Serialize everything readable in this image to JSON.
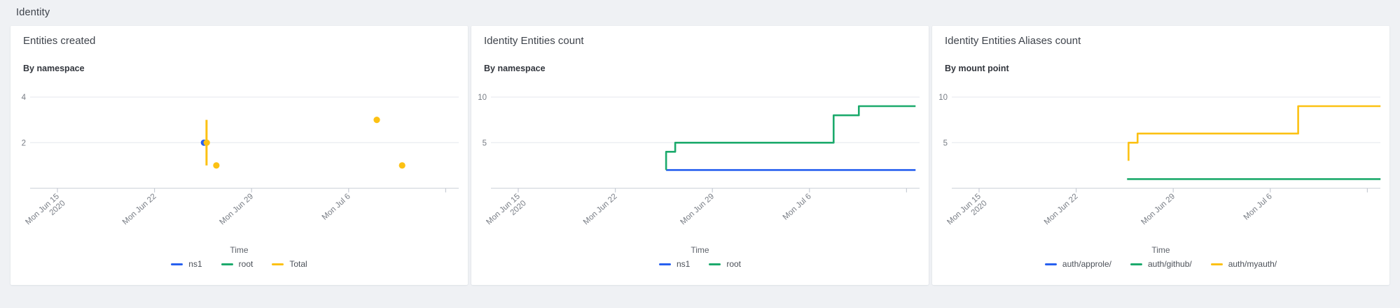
{
  "page": {
    "heading": "Identity"
  },
  "colors": {
    "blue": "#2760ef",
    "green": "#1caa6c",
    "yellow": "#fcc113"
  },
  "chart_data": [
    {
      "type": "scatter",
      "title": "Entities created",
      "subtitle": "By namespace",
      "legend_title": "Time",
      "ylim": [
        0,
        4
      ],
      "y_ticks": [
        {
          "value": 4,
          "label": "4"
        },
        {
          "value": 2,
          "label": "2"
        }
      ],
      "x_tick_labels": [
        "Mon Jun 15",
        "Mon Jun 22",
        "Mon Jun 29",
        "Mon Jul 6",
        ""
      ],
      "x_first_tick_year": "2020",
      "legend": [
        {
          "label": "ns1",
          "color": "blue"
        },
        {
          "label": "root",
          "color": "green"
        },
        {
          "label": "Total",
          "color": "yellow"
        }
      ],
      "series": [
        {
          "name": "ns1",
          "color": "blue",
          "line": [],
          "markers": [
            {
              "day": 10.57,
              "value": 2
            }
          ]
        },
        {
          "name": "root",
          "color": "green",
          "line": [],
          "markers": []
        },
        {
          "name": "Total",
          "color": "yellow",
          "line": [
            [
              10.75,
              3
            ],
            [
              10.75,
              1
            ]
          ],
          "markers": [
            {
              "day": 10.77,
              "value": 2
            },
            {
              "day": 11.46,
              "value": 1
            },
            {
              "day": 23.03,
              "value": 3
            },
            {
              "day": 24.86,
              "value": 1
            }
          ]
        }
      ]
    },
    {
      "type": "line",
      "title": "Identity Entities count",
      "subtitle": "By namespace",
      "legend_title": "Time",
      "ylim": [
        0,
        10
      ],
      "y_ticks": [
        {
          "value": 10,
          "label": "10"
        },
        {
          "value": 5,
          "label": "5"
        }
      ],
      "x_tick_labels": [
        "Mon Jun 15",
        "Mon Jun 22",
        "Mon Jun 29",
        "Mon Jul 6",
        ""
      ],
      "x_first_tick_year": "2020",
      "legend": [
        {
          "label": "ns1",
          "color": "blue"
        },
        {
          "label": "root",
          "color": "green"
        }
      ],
      "series": [
        {
          "name": "ns1",
          "color": "blue",
          "markers": [],
          "line": [
            [
              10.66,
              2
            ],
            [
              28.65,
              2
            ]
          ]
        },
        {
          "name": "root",
          "color": "green",
          "markers": [],
          "line": [
            [
              10.66,
              2
            ],
            [
              10.66,
              4
            ],
            [
              11.32,
              4
            ],
            [
              11.32,
              5
            ],
            [
              22.74,
              5
            ],
            [
              22.74,
              8
            ],
            [
              24.56,
              8
            ],
            [
              24.56,
              9
            ],
            [
              28.65,
              9
            ]
          ]
        }
      ]
    },
    {
      "type": "line",
      "title": "Identity Entities Aliases count",
      "subtitle": "By mount point",
      "legend_title": "Time",
      "ylim": [
        0,
        10
      ],
      "y_ticks": [
        {
          "value": 10,
          "label": "10"
        },
        {
          "value": 5,
          "label": "5"
        }
      ],
      "x_tick_labels": [
        "Mon Jun 15",
        "Mon Jun 22",
        "Mon Jun 29",
        "Mon Jul 6",
        ""
      ],
      "x_first_tick_year": "2020",
      "legend": [
        {
          "label": "auth/approle/",
          "color": "blue"
        },
        {
          "label": "auth/github/",
          "color": "green"
        },
        {
          "label": "auth/myauth/",
          "color": "yellow"
        }
      ],
      "series": [
        {
          "name": "auth/approle/",
          "color": "blue",
          "line": [],
          "markers": []
        },
        {
          "name": "auth/github/",
          "color": "green",
          "markers": [],
          "line": [
            [
              10.67,
              1
            ],
            [
              28.95,
              1
            ]
          ]
        },
        {
          "name": "auth/myauth/",
          "color": "yellow",
          "markers": [],
          "line": [
            [
              10.78,
              3
            ],
            [
              10.78,
              5
            ],
            [
              11.43,
              5
            ],
            [
              11.43,
              6
            ],
            [
              23.01,
              6
            ],
            [
              23.01,
              9
            ],
            [
              28.95,
              9
            ]
          ]
        }
      ]
    }
  ]
}
